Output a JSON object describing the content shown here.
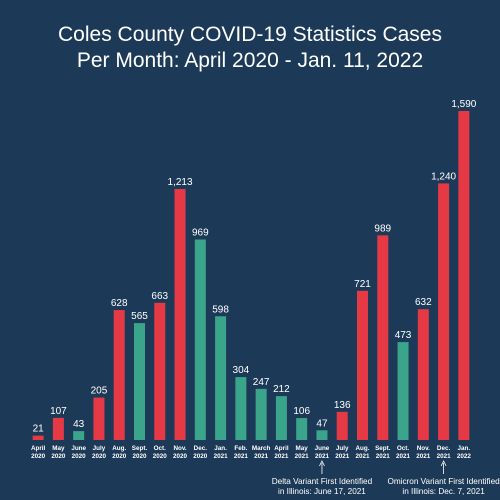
{
  "chart_data": {
    "type": "bar",
    "title_line1": "Coles County COVID-19 Statistics Cases",
    "title_line2": "Per Month: April 2020 - Jan. 11, 2022",
    "categories": [
      [
        "April",
        "2020"
      ],
      [
        "May",
        "2020"
      ],
      [
        "June",
        "2020"
      ],
      [
        "July",
        "2020"
      ],
      [
        "Aug.",
        "2020"
      ],
      [
        "Sept.",
        "2020"
      ],
      [
        "Oct.",
        "2020"
      ],
      [
        "Nov.",
        "2020"
      ],
      [
        "Dec.",
        "2020"
      ],
      [
        "Jan.",
        "2021"
      ],
      [
        "Feb.",
        "2021"
      ],
      [
        "March",
        "2021"
      ],
      [
        "April",
        "2021"
      ],
      [
        "May",
        "2021"
      ],
      [
        "June",
        "2021"
      ],
      [
        "July",
        "2021"
      ],
      [
        "Aug.",
        "2021"
      ],
      [
        "Sept.",
        "2021"
      ],
      [
        "Oct.",
        "2021"
      ],
      [
        "Nov.",
        "2021"
      ],
      [
        "Dec.",
        "2021"
      ],
      [
        "Jan.",
        "2022"
      ]
    ],
    "values": [
      21,
      107,
      43,
      205,
      628,
      565,
      663,
      1213,
      969,
      598,
      304,
      247,
      212,
      106,
      47,
      136,
      721,
      989,
      473,
      632,
      1240,
      1590
    ],
    "value_labels": [
      "21",
      "107",
      "43",
      "205",
      "628",
      "565",
      "663",
      "1,213",
      "969",
      "598",
      "304",
      "247",
      "212",
      "106",
      "47",
      "136",
      "721",
      "989",
      "473",
      "632",
      "1,240",
      "1,590"
    ],
    "bar_colors": [
      "red",
      "red",
      "green",
      "red",
      "red",
      "green",
      "red",
      "red",
      "green",
      "green",
      "green",
      "green",
      "green",
      "green",
      "green",
      "red",
      "red",
      "red",
      "green",
      "red",
      "red",
      "red"
    ],
    "colors": {
      "red": "#e63946",
      "green": "#3aa58a",
      "background": "#1c3a57",
      "text": "#ffffff"
    },
    "ylim": [
      0,
      1590
    ],
    "annotations": [
      {
        "bar_index": 14,
        "line1": "Delta Variant First Identified",
        "line2": "in Illinois: June 17, 2021"
      },
      {
        "bar_index": 20,
        "line1": "Omicron Variant First Identified",
        "line2": "in Illinois: Dec. 7, 2021"
      }
    ]
  }
}
